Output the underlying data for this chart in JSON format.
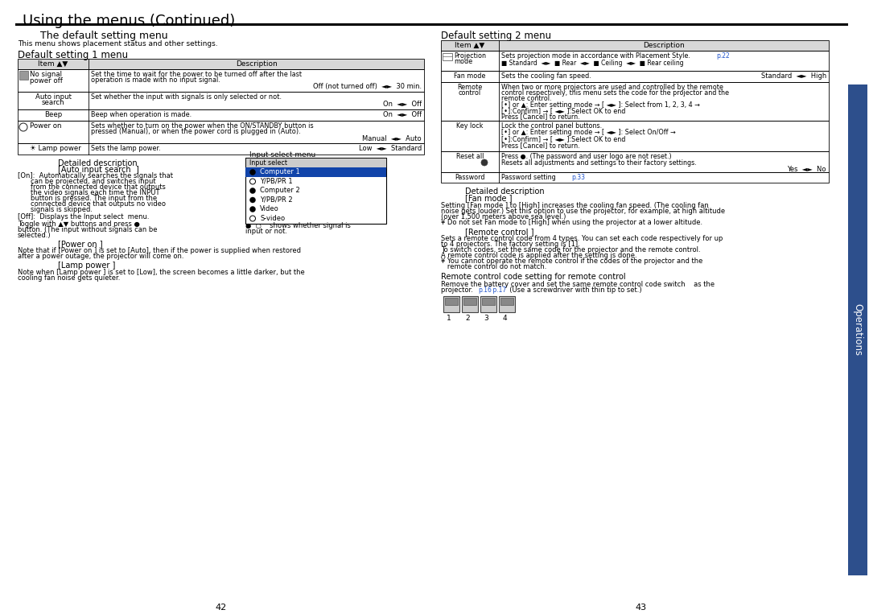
{
  "title": "Using the menus (Continued)",
  "left_section_title": "The default setting menu",
  "left_section_subtitle": "This menu shows placement status and other settings.",
  "default1_title": "Default setting 1 menu",
  "default2_title": "Default setting 2 menu",
  "table1_header": [
    "Item ▲▼",
    "Description"
  ],
  "table2_header": [
    "Item ▲▼",
    "Description"
  ],
  "page_left": "42",
  "page_right": "43",
  "bg_color": "#ffffff",
  "sidebar_color": "#2d4f8c",
  "header_bg": "#d8d8d8",
  "blue_ref": "#2255cc"
}
